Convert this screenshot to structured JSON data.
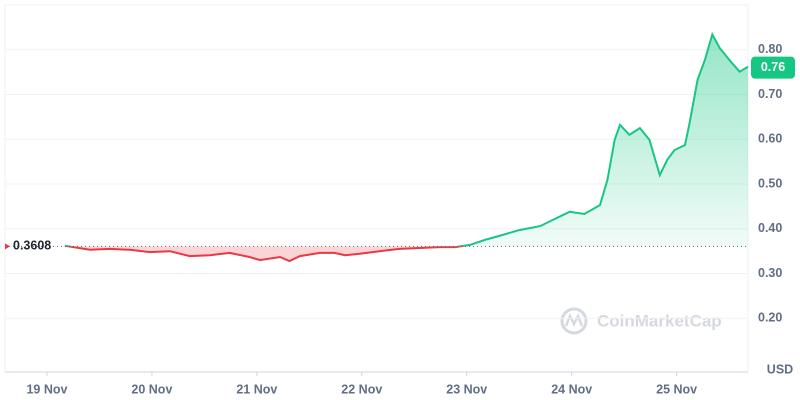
{
  "chart_data": {
    "type": "line",
    "baseline": 0.3608,
    "current_price": 0.76,
    "y_axis_label": "USD",
    "watermark": "CoinMarketCap",
    "colors": {
      "up": "#16c784",
      "down": "#ea3943"
    },
    "grid": true,
    "xlim": [
      -0.4,
      6.68
    ],
    "xticks": [
      {
        "value": 0,
        "label": "19 Nov"
      },
      {
        "value": 1,
        "label": "20 Nov"
      },
      {
        "value": 2,
        "label": "21 Nov"
      },
      {
        "value": 3,
        "label": "22 Nov"
      },
      {
        "value": 4,
        "label": "23 Nov"
      },
      {
        "value": 5,
        "label": "24 Nov"
      },
      {
        "value": 6,
        "label": "25 Nov"
      }
    ],
    "ylim": [
      0.08,
      0.9
    ],
    "yticks": [
      {
        "value": 0.2,
        "label": "0.20"
      },
      {
        "value": 0.3,
        "label": "0.30"
      },
      {
        "value": 0.4,
        "label": "0.40"
      },
      {
        "value": 0.5,
        "label": "0.50"
      },
      {
        "value": 0.6,
        "label": "0.60"
      },
      {
        "value": 0.7,
        "label": "0.70"
      },
      {
        "value": 0.8,
        "label": "0.80"
      }
    ],
    "x": [
      0.17,
      0.41,
      0.6,
      0.79,
      0.98,
      1.17,
      1.36,
      1.55,
      1.74,
      1.93,
      2.03,
      2.22,
      2.31,
      2.41,
      2.6,
      2.74,
      2.84,
      2.98,
      3.17,
      3.36,
      3.55,
      3.74,
      3.89,
      4.03,
      4.17,
      4.31,
      4.5,
      4.7,
      4.84,
      4.98,
      5.12,
      5.27,
      5.34,
      5.41,
      5.46,
      5.55,
      5.65,
      5.74,
      5.84,
      5.91,
      5.98,
      6.08,
      6.12,
      6.2,
      6.27,
      6.34,
      6.41,
      6.5,
      6.6,
      6.68
    ],
    "values": [
      0.362,
      0.353,
      0.355,
      0.353,
      0.348,
      0.35,
      0.339,
      0.341,
      0.346,
      0.337,
      0.33,
      0.337,
      0.328,
      0.339,
      0.346,
      0.346,
      0.341,
      0.344,
      0.35,
      0.355,
      0.357,
      0.359,
      0.359,
      0.364,
      0.375,
      0.384,
      0.397,
      0.406,
      0.422,
      0.438,
      0.433,
      0.453,
      0.509,
      0.599,
      0.632,
      0.61,
      0.625,
      0.599,
      0.52,
      0.554,
      0.576,
      0.587,
      0.632,
      0.733,
      0.778,
      0.834,
      0.804,
      0.778,
      0.751,
      0.762
    ]
  }
}
